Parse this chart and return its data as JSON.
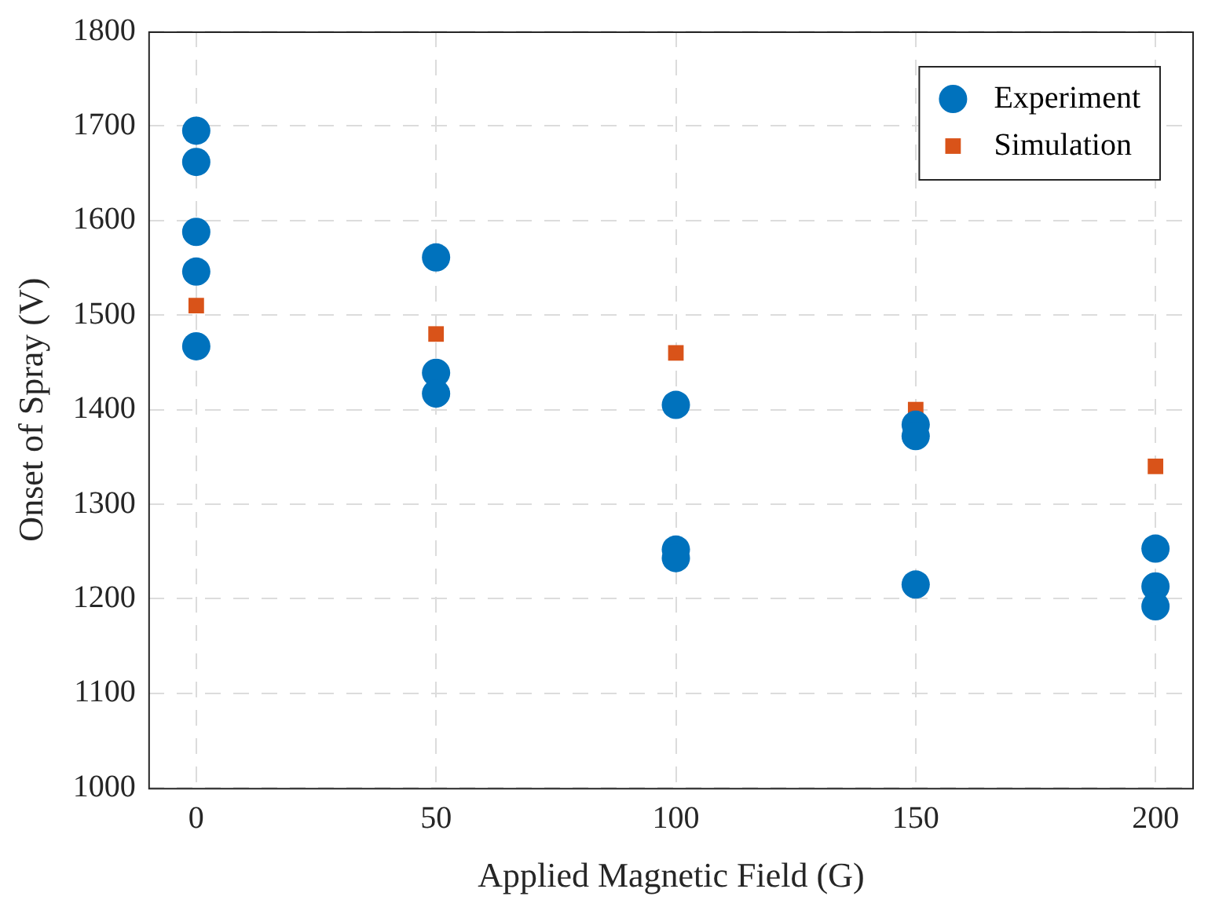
{
  "chart_data": {
    "type": "scatter",
    "xlabel": "Applied Magnetic Field (G)",
    "ylabel": "Onset of Spray (V)",
    "series": [
      {
        "name": "Experiment",
        "color": "#0072bd",
        "marker": "circle",
        "x": [
          0,
          0,
          0,
          0,
          0,
          50,
          50,
          50,
          100,
          100,
          100,
          150,
          150,
          150,
          200,
          200,
          200
        ],
        "values": [
          1695,
          1662,
          1588,
          1546,
          1467,
          1561,
          1439,
          1417,
          1405,
          1252,
          1243,
          1384,
          1372,
          1215,
          1253,
          1213,
          1192
        ]
      },
      {
        "name": "Simulation",
        "color": "#d95319",
        "marker": "square",
        "x": [
          0,
          50,
          100,
          150,
          200
        ],
        "values": [
          1510,
          1480,
          1460,
          1400,
          1340
        ]
      }
    ],
    "xlim": [
      -10,
      208
    ],
    "xticks": [
      0,
      50,
      100,
      150,
      200
    ],
    "ylim": [
      1000,
      1800
    ],
    "yticks": [
      1000,
      1100,
      1200,
      1300,
      1400,
      1500,
      1600,
      1700,
      1800
    ],
    "grid": true,
    "legend": "top right"
  }
}
